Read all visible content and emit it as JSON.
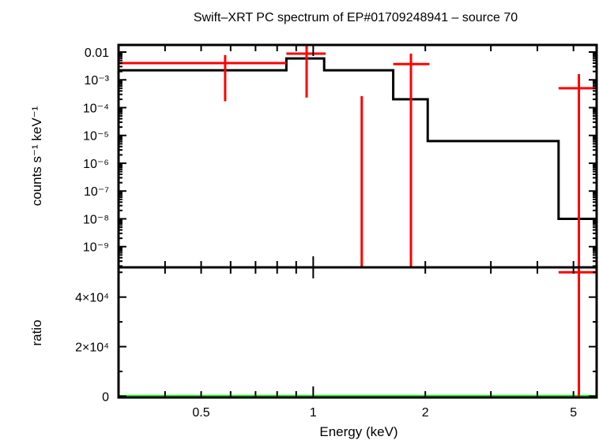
{
  "chart_data": {
    "type": "line",
    "title": "Swift–XRT PC spectrum of EP#01709248941 – source 70",
    "xlabel": "Energy (keV)",
    "xscale": "log",
    "xlim": [
      0.3,
      5.77
    ],
    "x_tick_labels": [
      "0.5",
      "1",
      "2",
      "5"
    ],
    "x_ticks": [
      0.5,
      1,
      2,
      5
    ],
    "colors": {
      "data": "#ff0000",
      "model": "#000000",
      "unity": "#00ff00"
    },
    "panels": [
      {
        "name": "spectrum",
        "ylabel": "counts s⁻¹ keV⁻¹",
        "yscale": "log",
        "ylim": [
          1.8e-10,
          0.018
        ],
        "y_tick_labels": [
          "0.01",
          "10⁻³",
          "10⁻⁴",
          "10⁻⁵",
          "10⁻⁶",
          "10⁻⁷",
          "10⁻⁸",
          "10⁻⁹"
        ],
        "y_ticks": [
          0.01,
          0.001,
          0.0001,
          1e-05,
          1e-06,
          1e-07,
          1e-08,
          1e-09
        ],
        "data_points": [
          {
            "x": 0.58,
            "xlo": 0.3,
            "xhi": 0.847,
            "y": 0.004,
            "ylo": 0.00017,
            "yhi": 0.0078
          },
          {
            "x": 0.96,
            "xlo": 0.847,
            "xhi": 1.08,
            "y": 0.0088,
            "ylo": 0.00023,
            "yhi": 0.018
          },
          {
            "x": 1.35,
            "xlo": 1.35,
            "xhi": 1.35,
            "y": 1e-11,
            "ylo": 1e-11,
            "yhi": 0.00026
          },
          {
            "x": 1.83,
            "xlo": 1.64,
            "xhi": 2.05,
            "y": 0.0037,
            "ylo": 1e-11,
            "yhi": 0.0088
          },
          {
            "x": 5.17,
            "xlo": 4.56,
            "xhi": 5.77,
            "y": 0.0005,
            "ylo": 1e-11,
            "yhi": 0.0016
          }
        ],
        "model_steps": [
          {
            "xlo": 0.3,
            "xhi": 0.847,
            "y": 0.0022
          },
          {
            "xlo": 0.847,
            "xhi": 1.07,
            "y": 0.0059
          },
          {
            "xlo": 1.07,
            "xhi": 1.64,
            "y": 0.0022
          },
          {
            "xlo": 1.64,
            "xhi": 2.03,
            "y": 0.0002
          },
          {
            "xlo": 2.03,
            "xhi": 4.56,
            "y": 6.3e-06
          },
          {
            "xlo": 4.56,
            "xhi": 5.77,
            "y": 1e-08
          }
        ]
      },
      {
        "name": "ratio",
        "ylabel": "ratio",
        "yscale": "linear",
        "ylim": [
          -500,
          52000
        ],
        "y_tick_labels": [
          "0",
          "2×10⁴",
          "4×10⁴"
        ],
        "y_ticks": [
          0,
          20000,
          40000
        ],
        "unity_line": 1,
        "data_points": [
          {
            "x": 5.17,
            "xlo": 4.56,
            "xhi": 5.77,
            "y": 50000,
            "ylo": -1000,
            "yhi": 60000
          }
        ]
      }
    ]
  }
}
